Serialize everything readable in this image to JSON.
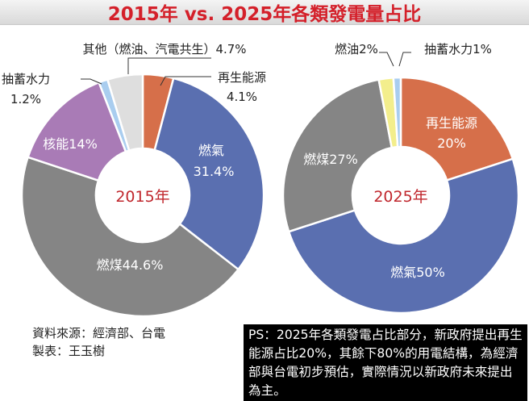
{
  "title": "2015年 vs. 2025年各類發電量占比",
  "chart_data": [
    {
      "type": "pie",
      "center_label": "2015年",
      "slices": [
        {
          "name": "再生能源",
          "value": 4.1,
          "label": "再生能源 4.1%",
          "color": "#d66f4a"
        },
        {
          "name": "燃氣",
          "value": 31.4,
          "label": "燃氣 31.4%",
          "color": "#5a6fb0"
        },
        {
          "name": "燃煤",
          "value": 44.6,
          "label": "燃煤44.6%",
          "color": "#858585"
        },
        {
          "name": "核能",
          "value": 14,
          "label": "核能14%",
          "color": "#a97bb6"
        },
        {
          "name": "抽蓄水力",
          "value": 1.2,
          "label": "抽蓄水力 1.2%",
          "color": "#a9cdef"
        },
        {
          "name": "其他（燃油、汽電共生）",
          "value": 4.7,
          "label": "其他（燃油、汽電共生）4.7%",
          "color": "#dedede"
        }
      ]
    },
    {
      "type": "pie",
      "center_label": "2025年",
      "slices": [
        {
          "name": "再生能源",
          "value": 20,
          "label": "再生能源 20%",
          "color": "#d66f4a"
        },
        {
          "name": "燃氣",
          "value": 50,
          "label": "燃氣50%",
          "color": "#5a6fb0"
        },
        {
          "name": "燃煤",
          "value": 27,
          "label": "燃煤27%",
          "color": "#858585"
        },
        {
          "name": "燃油",
          "value": 2,
          "label": "燃油2%",
          "color": "#f3ee8c"
        },
        {
          "name": "抽蓄水力",
          "value": 1,
          "label": "抽蓄水力1%",
          "color": "#a9cdef"
        }
      ]
    }
  ],
  "labels": {
    "c1_renew_name": "再生能源",
    "c1_renew_pct": "4.1%",
    "c1_gas_name": "燃氣",
    "c1_gas_pct": "31.4%",
    "c1_coal": "燃煤44.6%",
    "c1_nuclear": "核能14%",
    "c1_hydro_name": "抽蓄水力",
    "c1_hydro_pct": "1.2%",
    "c1_other": "其他（燃油、汽電共生）4.7%",
    "c2_renew_name": "再生能源",
    "c2_renew_pct": "20%",
    "c2_gas": "燃氣50%",
    "c2_coal": "燃煤27%",
    "c2_oil": "燃油2%",
    "c2_hydro": "抽蓄水力1%"
  },
  "source": {
    "line1": "資料來源：經濟部、台電",
    "line2": "製表：王玉樹"
  },
  "ps_note": "PS：2025年各類發電占比部分，新政府提出再生能源占比20%，其餘下80%的用電結構，為經濟部與台電初步預估，實際情況以新政府未來提出為主。"
}
